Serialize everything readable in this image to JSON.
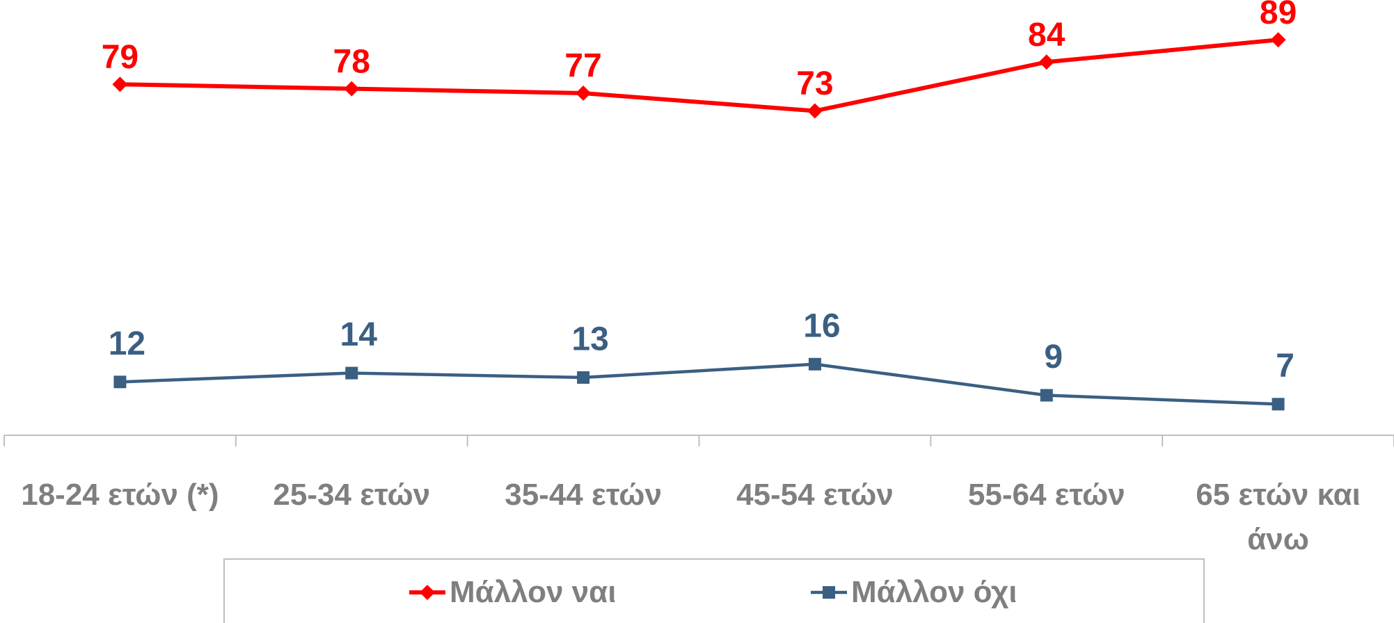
{
  "chart_data": {
    "type": "line",
    "categories": [
      "18-24 ετών (*)",
      "25-34 ετών",
      "35-44 ετών",
      "45-54 ετών",
      "55-64 ετών",
      "65 ετών και άνω"
    ],
    "series": [
      {
        "name": "Μάλλον ναι",
        "color": "#ff0000",
        "marker": "diamond",
        "values": [
          79,
          78,
          77,
          73,
          84,
          89
        ]
      },
      {
        "name": "Μάλλον όχι",
        "color": "#3a5f82",
        "marker": "square",
        "values": [
          12,
          14,
          13,
          16,
          9,
          7
        ]
      }
    ],
    "ylim": [
      0,
      100
    ],
    "legend": "bottom"
  }
}
